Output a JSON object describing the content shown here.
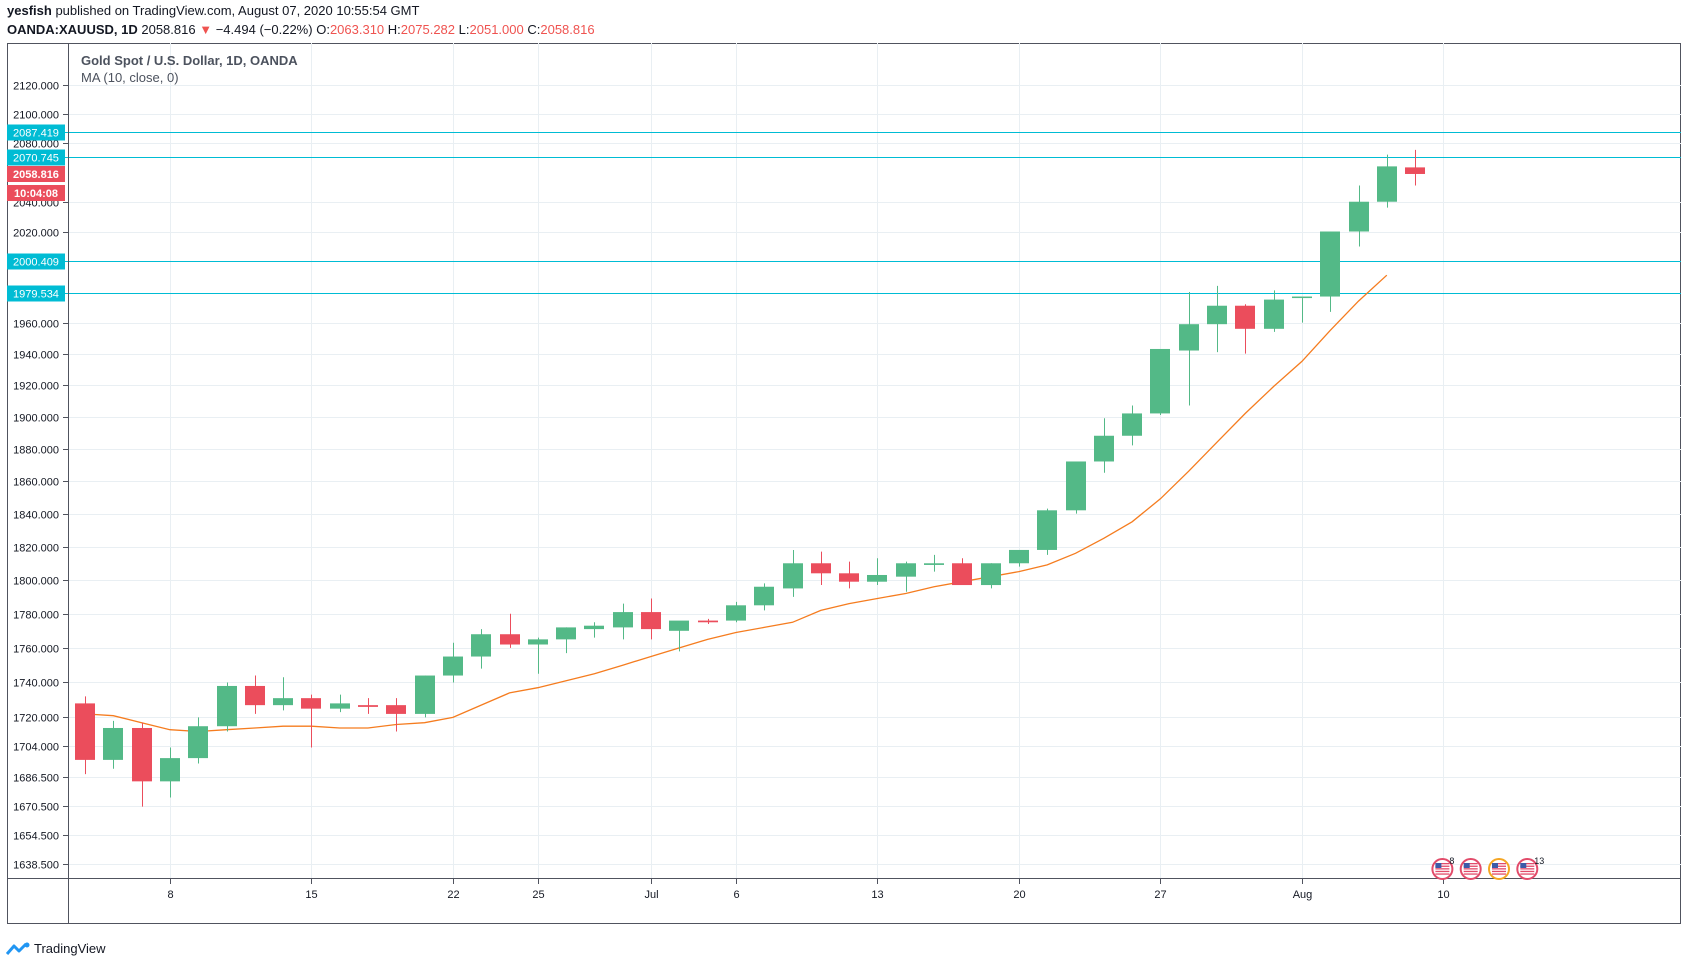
{
  "header": {
    "author": "yesfish",
    "published_text": "published on TradingView.com, August 07, 2020 10:55:54 GMT",
    "symbol": "OANDA:XAUUSD, 1D",
    "last": "2058.816",
    "arrow": "▼",
    "change": "−4.494 (−0.22%)",
    "o_label": "O:",
    "o_value": "2063.310",
    "h_label": "H:",
    "h_value": "2075.282",
    "l_label": "L:",
    "l_value": "2051.000",
    "c_label": "C:",
    "c_value": "2058.816"
  },
  "legend": {
    "title": "Gold Spot / U.S. Dollar, 1D, OANDA",
    "indicator": "MA (10, close, 0)"
  },
  "footer": {
    "brand": "TradingView"
  },
  "colors": {
    "up": "#53b987",
    "down": "#eb4d5c",
    "ma": "#f57c1f",
    "hline": "#00bcd4",
    "grid": "#e9eff3",
    "axis": "#50535e"
  },
  "chart_data": {
    "type": "candlestick",
    "title": "Gold Spot / U.S. Dollar, 1D, OANDA",
    "y_scale": "log",
    "ylim": [
      1631,
      2150
    ],
    "y_ticks": [
      "2120.000",
      "2100.000",
      "2080.000",
      "2040.000",
      "2020.000",
      "1960.000",
      "1940.000",
      "1920.000",
      "1900.000",
      "1880.000",
      "1860.000",
      "1840.000",
      "1820.000",
      "1800.000",
      "1780.000",
      "1760.000",
      "1740.000",
      "1720.000",
      "1704.000",
      "1686.500",
      "1670.500",
      "1654.500",
      "1638.500"
    ],
    "x_ticks": [
      {
        "bar": 3,
        "label": "8"
      },
      {
        "bar": 8,
        "label": "15"
      },
      {
        "bar": 13,
        "label": "22"
      },
      {
        "bar": 16,
        "label": "25"
      },
      {
        "bar": 20,
        "label": "Jul"
      },
      {
        "bar": 23,
        "label": "6"
      },
      {
        "bar": 28,
        "label": "13"
      },
      {
        "bar": 33,
        "label": "20"
      },
      {
        "bar": 38,
        "label": "27"
      },
      {
        "bar": 43,
        "label": "Aug"
      },
      {
        "bar": 48,
        "label": "10"
      }
    ],
    "candles": [
      {
        "o": 1728,
        "h": 1732,
        "l": 1688,
        "c": 1696
      },
      {
        "o": 1696,
        "h": 1718,
        "l": 1691,
        "c": 1714
      },
      {
        "o": 1714,
        "h": 1717,
        "l": 1670,
        "c": 1684
      },
      {
        "o": 1684,
        "h": 1703,
        "l": 1675,
        "c": 1697
      },
      {
        "o": 1697,
        "h": 1720,
        "l": 1694,
        "c": 1715
      },
      {
        "o": 1715,
        "h": 1740,
        "l": 1712,
        "c": 1738
      },
      {
        "o": 1738,
        "h": 1744,
        "l": 1722,
        "c": 1727
      },
      {
        "o": 1727,
        "h": 1743,
        "l": 1724,
        "c": 1731
      },
      {
        "o": 1731,
        "h": 1733,
        "l": 1703,
        "c": 1725
      },
      {
        "o": 1725,
        "h": 1733,
        "l": 1723,
        "c": 1728
      },
      {
        "o": 1727,
        "h": 1731,
        "l": 1722,
        "c": 1726
      },
      {
        "o": 1727,
        "h": 1731,
        "l": 1712,
        "c": 1722
      },
      {
        "o": 1722,
        "h": 1744,
        "l": 1720,
        "c": 1744
      },
      {
        "o": 1744,
        "h": 1763,
        "l": 1740,
        "c": 1755
      },
      {
        "o": 1755,
        "h": 1771,
        "l": 1748,
        "c": 1768
      },
      {
        "o": 1768,
        "h": 1780,
        "l": 1760,
        "c": 1762
      },
      {
        "o": 1762,
        "h": 1766,
        "l": 1745,
        "c": 1765
      },
      {
        "o": 1765,
        "h": 1772,
        "l": 1757,
        "c": 1772
      },
      {
        "o": 1771,
        "h": 1775,
        "l": 1766,
        "c": 1773
      },
      {
        "o": 1772,
        "h": 1786,
        "l": 1765,
        "c": 1781
      },
      {
        "o": 1781,
        "h": 1789,
        "l": 1765,
        "c": 1771
      },
      {
        "o": 1770,
        "h": 1775,
        "l": 1758,
        "c": 1776
      },
      {
        "o": 1776,
        "h": 1777,
        "l": 1774,
        "c": 1775
      },
      {
        "o": 1776,
        "h": 1787,
        "l": 1775,
        "c": 1785
      },
      {
        "o": 1785,
        "h": 1798,
        "l": 1782,
        "c": 1796
      },
      {
        "o": 1795,
        "h": 1818,
        "l": 1790,
        "c": 1810
      },
      {
        "o": 1810,
        "h": 1817,
        "l": 1797,
        "c": 1804
      },
      {
        "o": 1804,
        "h": 1811,
        "l": 1795,
        "c": 1799
      },
      {
        "o": 1799,
        "h": 1813,
        "l": 1797,
        "c": 1803
      },
      {
        "o": 1802,
        "h": 1811,
        "l": 1793,
        "c": 1810
      },
      {
        "o": 1809,
        "h": 1815,
        "l": 1805,
        "c": 1810
      },
      {
        "o": 1810,
        "h": 1813,
        "l": 1797,
        "c": 1797
      },
      {
        "o": 1797,
        "h": 1810,
        "l": 1795,
        "c": 1810
      },
      {
        "o": 1810,
        "h": 1818,
        "l": 1808,
        "c": 1818
      },
      {
        "o": 1818,
        "h": 1843,
        "l": 1815,
        "c": 1842
      },
      {
        "o": 1842,
        "h": 1872,
        "l": 1840,
        "c": 1872
      },
      {
        "o": 1872,
        "h": 1899,
        "l": 1865,
        "c": 1888
      },
      {
        "o": 1888,
        "h": 1907,
        "l": 1882,
        "c": 1902
      },
      {
        "o": 1902,
        "h": 1943,
        "l": 1901,
        "c": 1943
      },
      {
        "o": 1942,
        "h": 1980,
        "l": 1907,
        "c": 1959
      },
      {
        "o": 1959,
        "h": 1984,
        "l": 1941,
        "c": 1971
      },
      {
        "o": 1971,
        "h": 1972,
        "l": 1940,
        "c": 1956
      },
      {
        "o": 1956,
        "h": 1981,
        "l": 1954,
        "c": 1975
      },
      {
        "o": 1976,
        "h": 1976,
        "l": 1960,
        "c": 1977
      },
      {
        "o": 1977,
        "h": 2020,
        "l": 1967,
        "c": 2020
      },
      {
        "o": 2020,
        "h": 2051,
        "l": 2010,
        "c": 2040
      },
      {
        "o": 2040,
        "h": 2072,
        "l": 2036,
        "c": 2064
      },
      {
        "o": 2063.31,
        "h": 2075.282,
        "l": 2051,
        "c": 2058.816
      }
    ],
    "ma": {
      "name": "MA (10, close, 0)",
      "start_bar": 0,
      "values": [
        1722,
        1721,
        1717,
        1713,
        1712,
        1713,
        1714,
        1715,
        1715,
        1714,
        1714,
        1716,
        1717,
        1720,
        1727,
        1734,
        1737,
        1741,
        1745,
        1750,
        1755,
        1760,
        1765,
        1769,
        1772,
        1775,
        1782,
        1786,
        1789,
        1792,
        1796,
        1799,
        1802,
        1805,
        1809,
        1816,
        1825,
        1835,
        1849,
        1866,
        1884,
        1902,
        1919,
        1935,
        1955,
        1974,
        1991
      ]
    },
    "price_lines": [
      {
        "value": 2087.419,
        "label": "2087.419"
      },
      {
        "value": 2070.745,
        "label": "2070.745"
      },
      {
        "value": 2000.409,
        "label": "2000.409"
      },
      {
        "value": 1979.534,
        "label": "1979.534"
      }
    ],
    "last_price": {
      "label": "2058.816",
      "countdown": "10:04:08"
    },
    "event_icons": [
      {
        "bar": 48,
        "count": "8"
      },
      {
        "bar": 49,
        "count": ""
      },
      {
        "bar": 50,
        "count": ""
      },
      {
        "bar": 51,
        "count": "13"
      }
    ]
  }
}
